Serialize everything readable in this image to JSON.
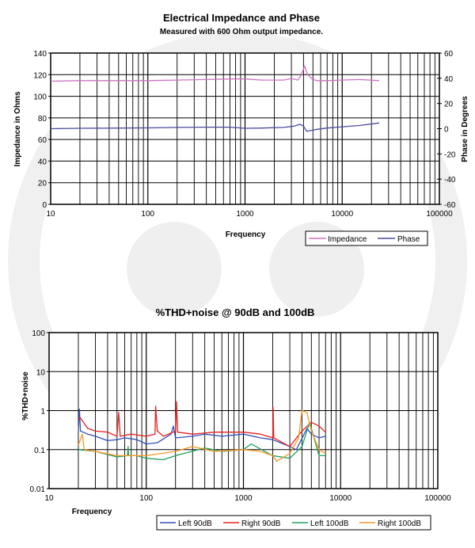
{
  "chart_data": [
    {
      "type": "line",
      "title": "Electrical Impedance and Phase",
      "subtitle": "Measured with 600 Ohm output impedance.",
      "xlabel": "Frequency",
      "ylabel": "Impedance in Ohms",
      "y2label": "Phase in Degrees",
      "xscale": "log",
      "xlim": [
        10,
        100000
      ],
      "ylim": [
        0,
        140
      ],
      "y2lim": [
        -60,
        60
      ],
      "xticks": [
        "10",
        "100",
        "1000",
        "10000",
        "100000"
      ],
      "yticks": [
        "0",
        "20",
        "40",
        "60",
        "80",
        "100",
        "120",
        "140"
      ],
      "y2ticks": [
        "-60",
        "-40",
        "-20",
        "0",
        "20",
        "40",
        "60"
      ],
      "grid": true,
      "legend_position": "bottom-right",
      "series": [
        {
          "name": "Impedance",
          "axis": "left",
          "color": "#d070c0",
          "x": [
            10,
            20,
            50,
            100,
            200,
            400,
            700,
            1000,
            1500,
            2500,
            3000,
            3500,
            3800,
            4100,
            4400,
            5000,
            5500,
            7000,
            10000,
            15000,
            24000
          ],
          "y": [
            114,
            114.5,
            114.5,
            114.5,
            115,
            115.5,
            116,
            116,
            115,
            115,
            116.5,
            115,
            120,
            128,
            120,
            115.5,
            114.5,
            114.5,
            115,
            115.5,
            114.5
          ]
        },
        {
          "name": "Phase",
          "axis": "right",
          "color": "#4a4aa0",
          "x": [
            10,
            20,
            50,
            100,
            200,
            400,
            700,
            1000,
            1500,
            2500,
            3200,
            3700,
            4000,
            4300,
            4700,
            5500,
            7000,
            10000,
            15000,
            24000
          ],
          "y": [
            0,
            0.3,
            0.5,
            0.6,
            1,
            1.2,
            1.2,
            0.3,
            0.5,
            1,
            2,
            3.5,
            2,
            -2,
            -1.5,
            -0.5,
            0.5,
            1.5,
            2.5,
            4.5
          ]
        }
      ]
    },
    {
      "type": "line",
      "title": "%THD+noise @ 90dB and 100dB",
      "xlabel": "Frequency",
      "ylabel": "%THD+noise",
      "xscale": "log",
      "yscale": "log",
      "xlim": [
        10,
        100000
      ],
      "ylim": [
        0.01,
        100
      ],
      "xticks": [
        "10",
        "100",
        "1000",
        "10000",
        "100000"
      ],
      "yticks": [
        "0.01",
        "0.1",
        "1",
        "10",
        "100"
      ],
      "grid": true,
      "legend_position": "bottom",
      "series": [
        {
          "name": "Left 90dB",
          "color": "#3050b8",
          "x": [
            20,
            20.5,
            21,
            25,
            30,
            40,
            50,
            60,
            80,
            100,
            130,
            180,
            190,
            200,
            300,
            400,
            600,
            1000,
            1500,
            2000,
            3000,
            3500,
            4500,
            5000,
            6000,
            7000
          ],
          "y": [
            0.3,
            1.1,
            0.3,
            0.25,
            0.22,
            0.17,
            0.18,
            0.2,
            0.18,
            0.14,
            0.15,
            0.25,
            0.4,
            0.2,
            0.22,
            0.25,
            0.22,
            0.25,
            0.2,
            0.18,
            0.12,
            0.1,
            0.35,
            0.25,
            0.2,
            0.22
          ]
        },
        {
          "name": "Right 90dB",
          "color": "#e82020",
          "x": [
            20,
            21,
            25,
            30,
            40,
            50,
            52,
            54,
            70,
            100,
            123,
            125,
            130,
            150,
            200,
            205,
            210,
            300,
            500,
            1000,
            1500,
            2000,
            2020,
            2050,
            3000,
            4000,
            5000,
            6000,
            7000
          ],
          "y": [
            0.6,
            0.65,
            0.35,
            0.3,
            0.28,
            0.22,
            0.9,
            0.22,
            0.25,
            0.22,
            0.25,
            1.3,
            0.3,
            0.22,
            0.3,
            1.7,
            0.28,
            0.25,
            0.28,
            0.28,
            0.25,
            0.2,
            1.2,
            0.2,
            0.12,
            0.3,
            0.5,
            0.4,
            0.28
          ]
        },
        {
          "name": "Left 100dB",
          "color": "#20a060",
          "x": [
            20,
            30,
            50,
            64,
            65,
            66,
            80,
            100,
            150,
            200,
            400,
            600,
            1000,
            1200,
            2000,
            3000,
            4000,
            4800,
            5500,
            6000,
            7000
          ],
          "y": [
            0.1,
            0.09,
            0.065,
            0.07,
            0.12,
            0.07,
            0.07,
            0.06,
            0.055,
            0.07,
            0.11,
            0.09,
            0.1,
            0.14,
            0.07,
            0.06,
            0.12,
            0.5,
            0.15,
            0.07,
            0.07
          ]
        },
        {
          "name": "Right 100dB",
          "color": "#f89820",
          "x": [
            20,
            22,
            23,
            30,
            50,
            100,
            200,
            300,
            500,
            1000,
            1500,
            2000,
            2200,
            3000,
            3700,
            4000,
            4500,
            5000,
            6000,
            7000
          ],
          "y": [
            0.13,
            0.25,
            0.1,
            0.09,
            0.07,
            0.07,
            0.09,
            0.12,
            0.09,
            0.1,
            0.09,
            0.07,
            0.05,
            0.08,
            0.2,
            1.0,
            0.9,
            0.3,
            0.1,
            0.08
          ]
        }
      ]
    }
  ]
}
